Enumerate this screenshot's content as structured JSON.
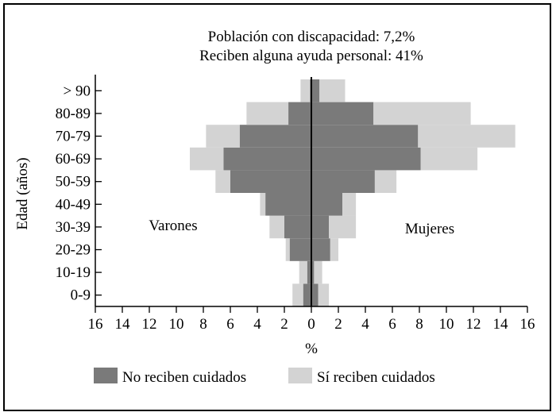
{
  "chart_data": {
    "type": "bar",
    "orientation": "horizontal",
    "layout": "population-pyramid",
    "title_lines": [
      "Población con discapacidad: 7,2%",
      "Reciben alguna ayuda personal: 41%"
    ],
    "xlabel": "%",
    "ylabel": "Edad (años)",
    "categories": [
      "0-9",
      "10-19",
      "20-29",
      "30-39",
      "40-49",
      "50-59",
      "60-69",
      "70-79",
      "80-89",
      "> 90"
    ],
    "side_labels": {
      "left": "Varones",
      "right": "Mujeres"
    },
    "xlim": [
      -16,
      16
    ],
    "xticks": [
      -16,
      -14,
      -12,
      -10,
      -8,
      -6,
      -4,
      -2,
      0,
      2,
      4,
      6,
      8,
      10,
      12,
      14,
      16
    ],
    "xtick_labels": [
      "16",
      "14",
      "12",
      "10",
      "8",
      "6",
      "4",
      "2",
      "0",
      "2",
      "4",
      "6",
      "8",
      "10",
      "12",
      "14",
      "16"
    ],
    "series": [
      {
        "name": "No reciben cuidados",
        "color": "#7a7a7a",
        "varones": [
          0.6,
          0.3,
          1.6,
          2.0,
          3.4,
          6.0,
          6.5,
          5.3,
          1.7,
          0.1
        ],
        "mujeres": [
          0.5,
          0.2,
          1.4,
          1.3,
          2.3,
          4.7,
          8.1,
          7.9,
          4.6,
          0.6
        ]
      },
      {
        "name": "Sí reciben cuidados",
        "color": "#d3d3d3",
        "varones": [
          0.8,
          0.6,
          0.3,
          1.1,
          0.4,
          1.1,
          2.5,
          2.5,
          3.1,
          0.7
        ],
        "mujeres": [
          0.8,
          0.6,
          0.6,
          2.0,
          1.0,
          1.6,
          4.2,
          7.2,
          7.2,
          1.9
        ]
      }
    ],
    "legend_position": "bottom",
    "grid": false
  }
}
